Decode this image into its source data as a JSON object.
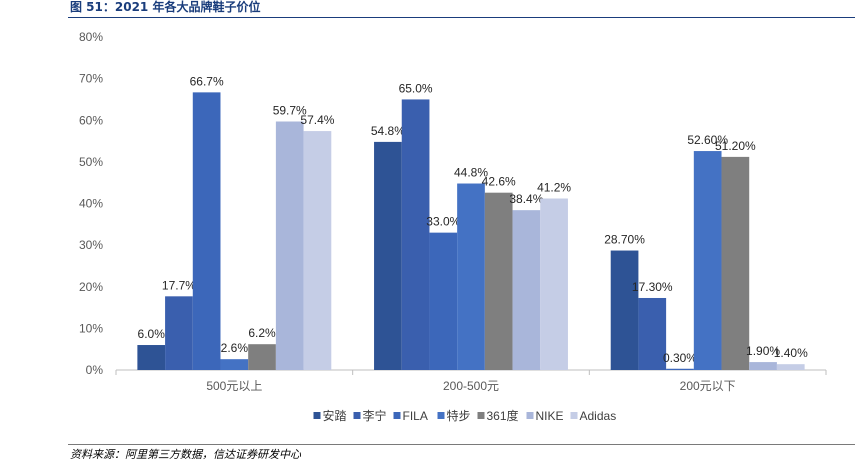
{
  "title": "图 51：2021 年各大品牌鞋子价位",
  "source": "资料来源：阿里第三方数据，信达证券研发中心",
  "chart_data": {
    "type": "bar",
    "ylim": [
      0,
      80
    ],
    "yticks": [
      "0%",
      "10%",
      "20%",
      "30%",
      "40%",
      "50%",
      "60%",
      "70%",
      "80%"
    ],
    "categories": [
      "500元以上",
      "200-500元",
      "200元以下"
    ],
    "legend_position": "bottom",
    "grid": false,
    "series": [
      {
        "name": "安踏",
        "color": "#2e5395",
        "values": [
          6.0,
          54.8,
          28.7
        ],
        "labels": [
          "6.0%",
          "54.8%",
          "28.70%"
        ]
      },
      {
        "name": "李宁",
        "color": "#3a5fae",
        "values": [
          17.7,
          65.0,
          17.3
        ],
        "labels": [
          "17.7%",
          "65.0%",
          "17.30%"
        ]
      },
      {
        "name": "FILA",
        "color": "#3c67ba",
        "values": [
          66.7,
          33.0,
          0.3
        ],
        "labels": [
          "66.7%",
          "33.0%",
          "0.30%"
        ]
      },
      {
        "name": "特步",
        "color": "#4472c4",
        "values": [
          2.6,
          44.8,
          52.6
        ],
        "labels": [
          "2.6%",
          "44.8%",
          "52.60%"
        ]
      },
      {
        "name": "361度",
        "color": "#7f7f7f",
        "values": [
          6.2,
          42.6,
          51.2
        ],
        "labels": [
          "6.2%",
          "42.6%",
          "51.20%"
        ]
      },
      {
        "name": "NIKE",
        "color": "#a9b6da",
        "values": [
          59.7,
          38.4,
          1.9
        ],
        "labels": [
          "59.7%",
          "38.4%",
          "1.90%"
        ]
      },
      {
        "name": "Adidas",
        "color": "#c5cde6",
        "values": [
          57.4,
          41.2,
          1.4
        ],
        "labels": [
          "57.4%",
          "41.2%",
          "1.40%"
        ]
      }
    ]
  }
}
